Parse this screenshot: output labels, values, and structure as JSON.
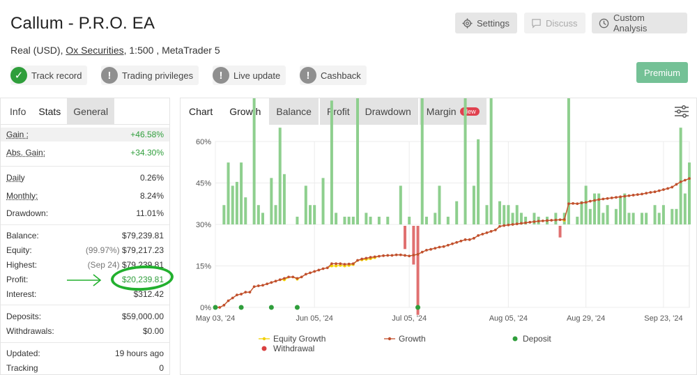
{
  "header": {
    "title": "Callum - P.R.O. EA",
    "subtitle_prefix": "Real (USD),",
    "broker": "Ox Securities",
    "subtitle_suffix": ", 1:500 , MetaTrader 5",
    "settings_label": "Settings",
    "discuss_label": "Discuss",
    "custom_analysis_label": "Custom Analysis",
    "premium_label": "Premium"
  },
  "badges": [
    {
      "label": "Track record",
      "icon": "check-icon",
      "status": "verified"
    },
    {
      "label": "Trading privileges",
      "icon": "exclamation-icon",
      "status": "unverified"
    },
    {
      "label": "Live update",
      "icon": "exclamation-icon",
      "status": "unverified"
    },
    {
      "label": "Cashback",
      "icon": "exclamation-icon",
      "status": "unverified"
    }
  ],
  "left_tabs": {
    "info": "Info",
    "stats": "Stats",
    "general": "General"
  },
  "stats": {
    "gain": {
      "label": "Gain :",
      "value": "+46.58%"
    },
    "abs_gain": {
      "label": "Abs. Gain:",
      "value": "+34.30%"
    },
    "daily": {
      "label": "Daily",
      "value": "0.26%"
    },
    "monthly": {
      "label": "Monthly:",
      "value": "8.24%"
    },
    "drawdown": {
      "label": "Drawdown:",
      "value": "11.01%"
    },
    "balance": {
      "label": "Balance:",
      "value": "$79,239.81"
    },
    "equity": {
      "label": "Equity:",
      "note": "(99.97%)",
      "value": "$79,217.23"
    },
    "highest": {
      "label": "Highest:",
      "note": "(Sep 24)",
      "value": "$79,239.81"
    },
    "profit": {
      "label": "Profit:",
      "value": "$20,239.81"
    },
    "interest": {
      "label": "Interest:",
      "value": "$312.42"
    },
    "deposits": {
      "label": "Deposits:",
      "value": "$59,000.00"
    },
    "withdrawals": {
      "label": "Withdrawals:",
      "value": "$0.00"
    },
    "updated": {
      "label": "Updated:",
      "value": "19 hours ago"
    },
    "tracking": {
      "label": "Tracking",
      "value": "0"
    }
  },
  "chart_tabs": {
    "chart": "Chart",
    "growth": "Growth",
    "balance": "Balance",
    "profit": "Profit",
    "drawdown": "Drawdown",
    "margin": "Margin",
    "new_badge": "New"
  },
  "colors": {
    "growth": "#c1502e",
    "equity": "#f2d000",
    "deposit": "#2f9e3b",
    "withdrawal": "#d94040",
    "bar_positive": "#8ecf8e",
    "bar_negative": "#e07070",
    "annotation": "#22b02e"
  },
  "chart_data": {
    "type": "line",
    "ylim": [
      0,
      60
    ],
    "y_ticks": [
      "0%",
      "15%",
      "30%",
      "45%",
      "60%"
    ],
    "x_tick_labels": [
      "May 03, '24",
      "Jun 05, '24",
      "Jul 05, '24",
      "Aug 05, '24",
      "Aug 29, '24",
      "Sep 23, '24"
    ],
    "x_tick_index": [
      0,
      23,
      45,
      68,
      86,
      104
    ],
    "legend": {
      "equity": "Equity Growth",
      "growth": "Growth",
      "deposit": "Deposit",
      "withdrawal": "Withdrawal"
    },
    "growth": [
      0,
      0,
      0.8,
      2.4,
      3.4,
      4.5,
      4.8,
      5.5,
      5.5,
      7.5,
      7.8,
      8.0,
      8.5,
      9.0,
      9.5,
      10,
      10.5,
      11,
      11,
      10.5,
      11,
      12,
      12.5,
      13,
      13.5,
      14,
      14.3,
      15.8,
      15.8,
      15.8,
      15.6,
      15.7,
      15.8,
      17.0,
      17.5,
      17.8,
      18.1,
      18.3,
      18.5,
      18.7,
      18.8,
      18.8,
      19,
      19,
      18.8,
      18.6,
      18.9,
      19.2,
      20,
      20.7,
      21.0,
      21.4,
      21.8,
      22,
      22.5,
      23,
      23.5,
      24,
      24.5,
      24.5,
      25,
      26,
      26.5,
      27,
      27.5,
      28,
      29.3,
      29.6,
      29.8,
      30.0,
      30.2,
      30.4,
      30.6,
      30.8,
      31.0,
      31.2,
      31.3,
      31.4,
      31.5,
      31.6,
      31.7,
      31.8,
      37.5,
      37.6,
      37.5,
      37.8,
      38.0,
      38.4,
      38.7,
      39.0,
      39.2,
      39.4,
      39.6,
      39.8,
      40.0,
      40.2,
      40.4,
      40.6,
      40.8,
      41.0,
      41.3,
      41.6,
      41.8,
      42.2,
      42.6,
      43.0,
      43.5,
      44.5,
      45.4,
      46.0,
      46.6
    ],
    "equity": [
      0,
      0,
      0.8,
      2.4,
      3.4,
      4.5,
      4.8,
      5.5,
      5.5,
      7.5,
      7.8,
      8.0,
      8.5,
      9.0,
      9.5,
      10,
      10.0,
      10.8,
      11,
      10.2,
      11,
      12,
      12.5,
      13,
      13.5,
      14,
      14.3,
      15.0,
      15.0,
      15.2,
      15.0,
      15.2,
      15.5,
      17.0,
      17.2,
      17.4,
      17.6,
      18.0,
      18.5,
      18.7,
      18.8,
      18.8,
      19,
      19,
      18.8,
      18.6,
      18.9,
      19.2,
      20,
      20.7,
      21.0,
      21.4,
      21.8,
      22,
      22.5,
      23,
      23.5,
      24,
      24.5,
      24.5,
      25,
      26,
      26.5,
      27,
      27.5,
      28,
      29.3,
      29.6,
      29.8,
      30.0,
      30.2,
      30.4,
      30.6,
      30.8,
      31.0,
      31.2,
      31.3,
      31.4,
      31.5,
      31.6,
      31.7,
      31.5,
      37.5,
      37.6,
      37.5,
      37.8,
      38.0,
      38.4,
      38.7,
      39.0,
      39.2,
      39.4,
      39.6,
      39.8,
      40.0,
      40.2,
      40.4,
      40.6,
      40.8,
      41.0,
      41.3,
      41.6,
      41.8,
      42.2,
      42.6,
      43.0,
      43.5,
      44.5,
      45.4,
      46.0,
      46.6
    ],
    "daily_change": [
      0,
      0,
      0,
      1.6,
      1.0,
      1.1,
      0.3,
      0.7,
      0,
      2.0,
      0.3,
      0.2,
      0.5,
      0.5,
      0.5,
      0.5,
      0.5,
      0.5,
      0,
      -0.5,
      0.5,
      1.0,
      0.5,
      0.5,
      0.5,
      0.5,
      0.3,
      1.5,
      0,
      0,
      -0.2,
      0.1,
      0.1,
      1.2,
      0.5,
      0.3,
      0.3,
      0.2,
      0.2,
      0.2,
      0.1,
      0,
      0.2,
      0,
      -0.2,
      -0.2,
      0.3,
      0.3,
      0.8,
      0.7,
      0.3,
      0.4,
      0.4,
      0.2,
      0.5,
      0.5,
      0.5,
      0.5,
      0.5,
      0,
      0.5,
      1.0,
      0.5,
      0.5,
      0.5,
      0.5,
      1.3,
      0.3,
      0.2,
      0.2,
      0.2,
      0.2,
      0.2,
      0.2,
      0.2,
      0.2,
      0.1,
      0.1,
      0.1,
      0.1,
      0.1,
      0.1,
      5.7,
      0.1,
      -0.1,
      0.3,
      0.2,
      0.4,
      0.3,
      0.3,
      0.2,
      0.2,
      0.2,
      0.2,
      0.2,
      0.2,
      0.2,
      0.2,
      0.2,
      0.2,
      0.3,
      0.3,
      0.2,
      0.4,
      0.4,
      0.4,
      0.5,
      1.0,
      0.9,
      0.6,
      0.6
    ],
    "bars": [
      {
        "i": 2,
        "v": 0.5
      },
      {
        "i": 3,
        "v": 1.6
      },
      {
        "i": 4,
        "v": 1.0
      },
      {
        "i": 5,
        "v": 1.1
      },
      {
        "i": 6,
        "v": 1.6
      },
      {
        "i": 7,
        "v": 0.7
      },
      {
        "i": 9,
        "v": 5.8
      },
      {
        "i": 10,
        "v": 0.5
      },
      {
        "i": 11,
        "v": 0.3
      },
      {
        "i": 13,
        "v": 1.2
      },
      {
        "i": 14,
        "v": 0.5
      },
      {
        "i": 15,
        "v": 2.5
      },
      {
        "i": 16,
        "v": 1.3
      },
      {
        "i": 19,
        "v": 0.2
      },
      {
        "i": 21,
        "v": 1.0
      },
      {
        "i": 22,
        "v": 0.5
      },
      {
        "i": 23,
        "v": 0.5
      },
      {
        "i": 25,
        "v": 1.2
      },
      {
        "i": 27,
        "v": 3.2
      },
      {
        "i": 28,
        "v": 0.3
      },
      {
        "i": 30,
        "v": 0.2
      },
      {
        "i": 31,
        "v": 0.2
      },
      {
        "i": 32,
        "v": 0.2
      },
      {
        "i": 33,
        "v": 3.9
      },
      {
        "i": 35,
        "v": 0.3
      },
      {
        "i": 36,
        "v": 0.2
      },
      {
        "i": 38,
        "v": 0.2
      },
      {
        "i": 40,
        "v": 0.2
      },
      {
        "i": 43,
        "v": 1.0
      },
      {
        "i": 44,
        "v": -0.6
      },
      {
        "i": 45,
        "v": 0.2
      },
      {
        "i": 46,
        "v": -1.0
      },
      {
        "i": 47,
        "v": -2.3
      },
      {
        "i": 48,
        "v": 3.6
      },
      {
        "i": 49,
        "v": 0.2
      },
      {
        "i": 51,
        "v": 0.3
      },
      {
        "i": 52,
        "v": 1.0
      },
      {
        "i": 54,
        "v": 0.2
      },
      {
        "i": 56,
        "v": 0.6
      },
      {
        "i": 58,
        "v": 3.9
      },
      {
        "i": 60,
        "v": 1.0
      },
      {
        "i": 61,
        "v": 2.2
      },
      {
        "i": 63,
        "v": 0.5
      },
      {
        "i": 64,
        "v": 4.0
      },
      {
        "i": 66,
        "v": 0.6
      },
      {
        "i": 67,
        "v": 0.5
      },
      {
        "i": 68,
        "v": 0.5
      },
      {
        "i": 69,
        "v": 0.3
      },
      {
        "i": 70,
        "v": 0.5
      },
      {
        "i": 71,
        "v": 0.3
      },
      {
        "i": 72,
        "v": 0.2
      },
      {
        "i": 74,
        "v": 0.3
      },
      {
        "i": 75,
        "v": 0.2
      },
      {
        "i": 77,
        "v": 0.2
      },
      {
        "i": 79,
        "v": 0.3
      },
      {
        "i": 80,
        "v": -0.3
      },
      {
        "i": 81,
        "v": 0.3
      },
      {
        "i": 82,
        "v": 5.9
      },
      {
        "i": 84,
        "v": 0.2
      },
      {
        "i": 85,
        "v": 0.6
      },
      {
        "i": 86,
        "v": 1.0
      },
      {
        "i": 87,
        "v": 0.4
      },
      {
        "i": 88,
        "v": 0.8
      },
      {
        "i": 89,
        "v": 0.8
      },
      {
        "i": 90,
        "v": 0.3
      },
      {
        "i": 91,
        "v": 0.5
      },
      {
        "i": 93,
        "v": 0.4
      },
      {
        "i": 94,
        "v": 0.7
      },
      {
        "i": 95,
        "v": 0.8
      },
      {
        "i": 96,
        "v": 0.3
      },
      {
        "i": 97,
        "v": 0.3
      },
      {
        "i": 99,
        "v": 0.3
      },
      {
        "i": 100,
        "v": 0.3
      },
      {
        "i": 102,
        "v": 0.5
      },
      {
        "i": 103,
        "v": 0.3
      },
      {
        "i": 104,
        "v": 0.5
      },
      {
        "i": 106,
        "v": 0.4
      },
      {
        "i": 107,
        "v": 0.4
      },
      {
        "i": 108,
        "v": 2.5
      },
      {
        "i": 109,
        "v": 0.8
      },
      {
        "i": 110,
        "v": 1.6
      }
    ],
    "deposits_at": [
      0,
      6,
      13,
      19,
      47
    ],
    "x_count": 111
  }
}
